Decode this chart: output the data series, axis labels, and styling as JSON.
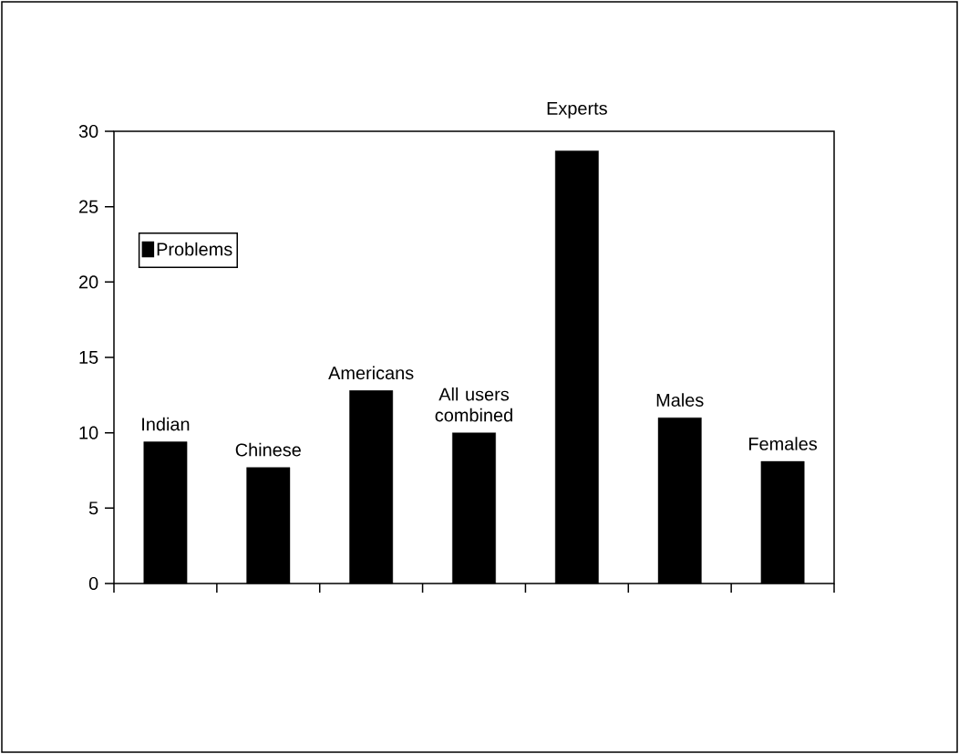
{
  "chart_data": {
    "type": "bar",
    "categories": [
      "Indian",
      "Chinese",
      "Americans",
      "All users combined",
      "Experts",
      "Males",
      "Females"
    ],
    "series": [
      {
        "name": "Problems",
        "color": "#000000",
        "values": [
          9.4,
          7.7,
          12.8,
          10.0,
          28.7,
          11.0,
          8.1
        ]
      }
    ],
    "ylim": [
      0,
      30
    ],
    "yticks": [
      0,
      5,
      10,
      15,
      20,
      25,
      30
    ],
    "legend": "top left",
    "grid": false
  }
}
